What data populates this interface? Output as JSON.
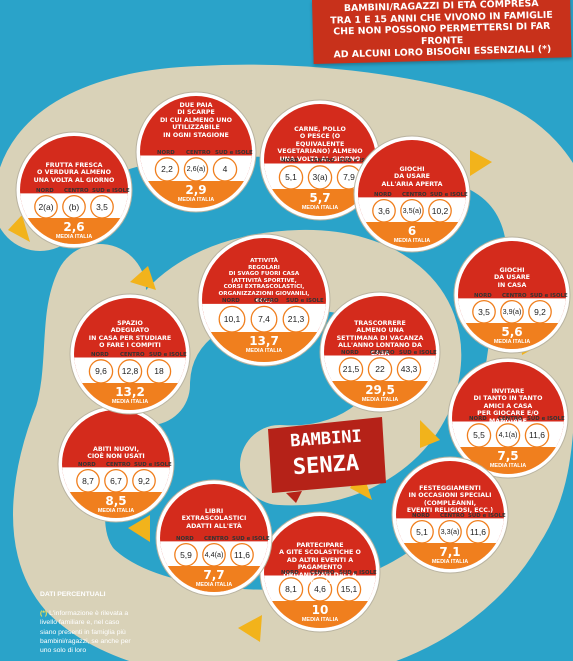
{
  "title": [
    "BAMBINI/RAGAZZI DI ETÀ COMPRESA",
    "TRA 1 E 15 ANNI CHE VIVONO IN FAMIGLIE",
    "CHE NON POSSONO PERMETTERSI DI FAR FRONTE",
    "AD ALCUNI LORO BISOGNI ESSENZIALI (*)"
  ],
  "region_labels": [
    "NORD",
    "CENTRO",
    "SUD e ISOLE"
  ],
  "average_label": "MEDIA ITALIA",
  "center": {
    "line1": "BAMBINI",
    "line2": "SENZA"
  },
  "colors": {
    "red": "#d42b1c",
    "orange": "#f07f1e",
    "background": "#2aa3c9",
    "path": "#d9d2b8"
  },
  "items": [
    {
      "lines": [
        "FRUTTA FRESCA",
        "O VERDURA ALMENO",
        "UNA VOLTA AL GIORNO"
      ],
      "values": [
        "2(a)",
        "(b)",
        "3,5"
      ],
      "average": "2,6"
    },
    {
      "lines": [
        "DUE PAIA",
        "DI SCARPE",
        "DI CUI ALMENO UNO",
        "UTILIZZABILE",
        "IN OGNI STAGIONE"
      ],
      "values": [
        "2,2",
        "2,6(a)",
        "4"
      ],
      "average": "2,9"
    },
    {
      "lines": [
        "CARNE, POLLO",
        "O PESCE (O EQUIVALENTE",
        "VEGETARIANO) ALMENO",
        "UNA VOLTA AL GIORNO"
      ],
      "values": [
        "5,1",
        "3(a)",
        "7,9"
      ],
      "average": "5,7"
    },
    {
      "lines": [
        "GIOCHI",
        "DA USARE",
        "ALL'ARIA APERTA"
      ],
      "values": [
        "3,6",
        "3,5(a)",
        "10,2"
      ],
      "average": "6"
    },
    {
      "lines": [
        "GIOCHI",
        "DA USARE",
        "IN CASA"
      ],
      "values": [
        "3,5",
        "3,9(a)",
        "9,2"
      ],
      "average": "5,6"
    },
    {
      "lines": [
        "INVITARE",
        "DI TANTO IN TANTO",
        "AMICI A CASA",
        "PER GIOCARE E/O MANGIARE"
      ],
      "values": [
        "5,5",
        "4,1(a)",
        "11,6"
      ],
      "average": "7,5"
    },
    {
      "lines": [
        "FESTEGGIAMENTI",
        "IN OCCASIONI SPECIALI",
        "(COMPLEANNI,",
        "EVENTI RELIGIOSI, ECC.)"
      ],
      "values": [
        "5,1",
        "3,3(a)",
        "11,6"
      ],
      "average": "7,1"
    },
    {
      "lines": [
        "PARTECIPARE",
        "A GITE SCOLASTICHE O",
        "AD ALTRI EVENTI A PAGAMENTO",
        "ORGANIZZATI DALLA SCUOLA"
      ],
      "values": [
        "8,1",
        "4,6",
        "15,1"
      ],
      "average": "10"
    },
    {
      "lines": [
        "LIBRI",
        "EXTRASCOLASTICI",
        "ADATTI ALL'ETÀ"
      ],
      "values": [
        "5,9",
        "4,4(a)",
        "11,6"
      ],
      "average": "7,7"
    },
    {
      "lines": [
        "ABITI NUOVI,",
        "CIOÈ NON USATI"
      ],
      "values": [
        "8,7",
        "6,7",
        "9,2"
      ],
      "average": "8,5"
    },
    {
      "lines": [
        "SPAZIO",
        "ADEGUATO",
        "IN CASA PER STUDIARE",
        "O FARE I COMPITI"
      ],
      "values": [
        "9,6",
        "12,8",
        "18"
      ],
      "average": "13,2"
    },
    {
      "lines": [
        "ATTIVITÀ",
        "REGOLARI",
        "DI SVAGO FUORI CASA",
        "(ATTIVITÀ SPORTIVE,",
        "CORSI EXTRASCOLASTICI,",
        "ORGANIZZAZIONI GIOVANILI, ECC.)"
      ],
      "values": [
        "10,1",
        "7,4",
        "21,3"
      ],
      "average": "13,7"
    },
    {
      "lines": [
        "TRASCORRERE",
        "ALMENO UNA",
        "SETTIMANA DI VACANZA",
        "ALL'ANNO LONTANO DA CASA"
      ],
      "values": [
        "21,5",
        "22",
        "43,3"
      ],
      "average": "29,5"
    }
  ],
  "footnote": {
    "header": "DATI PERCENTUALI",
    "mark": "(*)",
    "text": "L'informazione è rilevata a livello familiare e, nel caso siano presenti in famiglia più bambini/ragazzi, se anche per uno solo di loro"
  }
}
